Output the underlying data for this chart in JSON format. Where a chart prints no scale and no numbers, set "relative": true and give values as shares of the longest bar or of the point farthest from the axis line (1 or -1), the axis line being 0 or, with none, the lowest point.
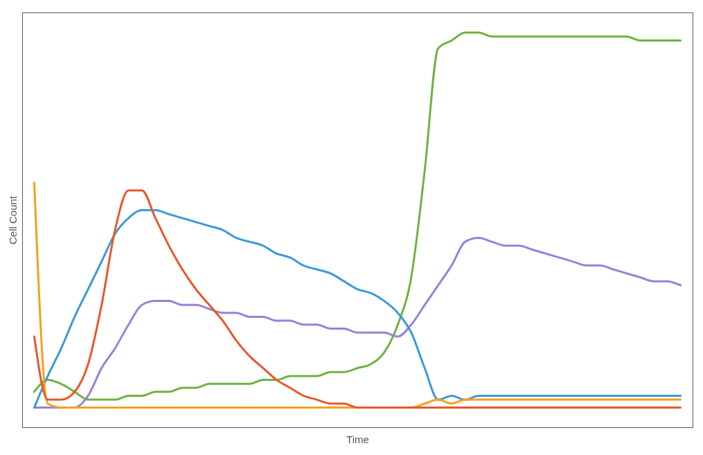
{
  "chart_data": {
    "type": "line",
    "relative": true,
    "xlabel": "Time",
    "ylabel": "Cell Count",
    "grid": false,
    "legend": false,
    "marker": "none",
    "line_style": "solid",
    "categories": [
      null,
      null,
      null,
      null,
      null,
      null,
      null,
      null,
      null,
      null,
      null,
      null,
      null,
      null,
      null,
      null,
      null,
      null,
      null,
      null,
      null,
      null,
      null,
      null,
      null,
      null,
      null,
      null,
      null,
      null,
      null,
      null,
      null,
      null,
      null,
      null,
      null,
      null,
      null,
      null,
      null,
      null,
      null,
      null,
      null,
      null,
      null,
      null,
      null
    ],
    "series": [
      {
        "color": "#6db33f",
        "values": [
          0.09,
          0.12,
          0.11,
          0.09,
          0.07,
          0.07,
          0.07,
          0.08,
          0.08,
          0.09,
          0.09,
          0.1,
          0.1,
          0.11,
          0.11,
          0.11,
          0.11,
          0.12,
          0.12,
          0.13,
          0.13,
          0.13,
          0.14,
          0.14,
          0.15,
          0.16,
          0.19,
          0.26,
          0.38,
          0.65,
          0.96,
          0.98,
          1.0,
          1.0,
          0.99,
          0.99,
          0.99,
          0.99,
          0.99,
          0.99,
          0.99,
          0.99,
          0.99,
          0.99,
          0.99,
          0.98,
          0.98,
          0.98,
          0.98
        ]
      },
      {
        "color": "#9b7fd9",
        "values": [
          0.05,
          0.05,
          0.05,
          0.05,
          0.08,
          0.15,
          0.2,
          0.26,
          0.31,
          0.32,
          0.32,
          0.31,
          0.31,
          0.3,
          0.29,
          0.29,
          0.28,
          0.28,
          0.27,
          0.27,
          0.26,
          0.26,
          0.25,
          0.25,
          0.24,
          0.24,
          0.24,
          0.23,
          0.26,
          0.31,
          0.36,
          0.41,
          0.47,
          0.48,
          0.47,
          0.46,
          0.46,
          0.45,
          0.44,
          0.43,
          0.42,
          0.41,
          0.41,
          0.4,
          0.39,
          0.38,
          0.37,
          0.37,
          0.36
        ]
      },
      {
        "color": "#3a9ad9",
        "values": [
          0.05,
          0.13,
          0.2,
          0.28,
          0.35,
          0.42,
          0.49,
          0.53,
          0.55,
          0.55,
          0.54,
          0.53,
          0.52,
          0.51,
          0.5,
          0.48,
          0.47,
          0.46,
          0.44,
          0.43,
          0.41,
          0.4,
          0.39,
          0.37,
          0.35,
          0.34,
          0.32,
          0.29,
          0.24,
          0.15,
          0.07,
          0.08,
          0.07,
          0.08,
          0.08,
          0.08,
          0.08,
          0.08,
          0.08,
          0.08,
          0.08,
          0.08,
          0.08,
          0.08,
          0.08,
          0.08,
          0.08,
          0.08,
          0.08
        ]
      },
      {
        "color": "#f5a01a",
        "values": [
          0.62,
          0.06,
          0.05,
          0.05,
          0.05,
          0.05,
          0.05,
          0.05,
          0.05,
          0.05,
          0.05,
          0.05,
          0.05,
          0.05,
          0.05,
          0.05,
          0.05,
          0.05,
          0.05,
          0.05,
          0.05,
          0.05,
          0.05,
          0.05,
          0.05,
          0.05,
          0.05,
          0.05,
          0.05,
          0.06,
          0.07,
          0.06,
          0.07,
          0.07,
          0.07,
          0.07,
          0.07,
          0.07,
          0.07,
          0.07,
          0.07,
          0.07,
          0.07,
          0.07,
          0.07,
          0.07,
          0.07,
          0.07,
          0.07
        ]
      },
      {
        "color": "#e8572a",
        "values": [
          0.23,
          0.07,
          0.07,
          0.09,
          0.16,
          0.31,
          0.5,
          0.6,
          0.6,
          0.53,
          0.46,
          0.4,
          0.35,
          0.31,
          0.27,
          0.22,
          0.18,
          0.15,
          0.12,
          0.1,
          0.08,
          0.07,
          0.06,
          0.06,
          0.05,
          0.05,
          0.05,
          0.05,
          0.05,
          0.05,
          0.05,
          0.05,
          0.05,
          0.05,
          0.05,
          0.05,
          0.05,
          0.05,
          0.05,
          0.05,
          0.05,
          0.05,
          0.05,
          0.05,
          0.05,
          0.05,
          0.05,
          0.05,
          0.05
        ]
      }
    ]
  }
}
